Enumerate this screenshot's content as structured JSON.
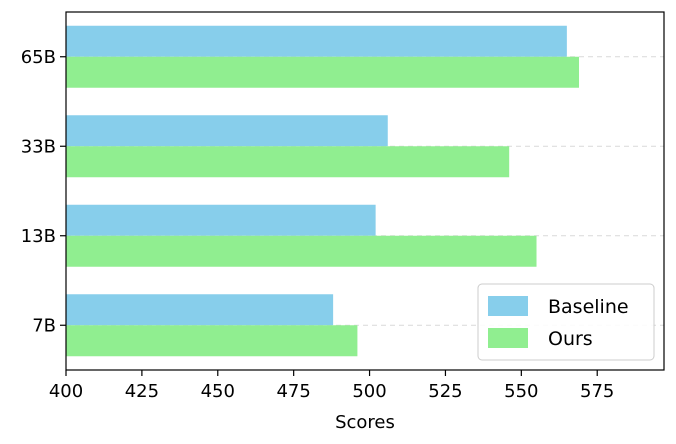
{
  "chart_data": {
    "type": "bar",
    "orientation": "horizontal",
    "categories": [
      "7B",
      "13B",
      "33B",
      "65B"
    ],
    "series": [
      {
        "name": "Baseline",
        "values": [
          488,
          502,
          506,
          565
        ],
        "color": "#87ceeb"
      },
      {
        "name": "Ours",
        "values": [
          496,
          555,
          546,
          569
        ],
        "color": "#90ee90"
      }
    ],
    "xlabel": "Scores",
    "ylabel": "",
    "xlim": [
      400,
      597
    ],
    "xticks": [
      "400",
      "425",
      "450",
      "475",
      "500",
      "525",
      "550",
      "575"
    ],
    "grid": "horizontal dashed",
    "legend_position": "bottom-right"
  }
}
